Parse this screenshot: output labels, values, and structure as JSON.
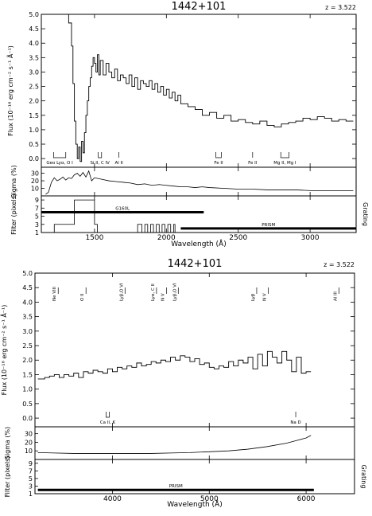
{
  "chart_data": [
    {
      "type": "line",
      "title": "1442+101",
      "redshift_label": "z = 3.522",
      "xlabel": "Wavelength (Å)",
      "xlim": [
        1130,
        3320
      ],
      "xticks": [
        1500,
        2000,
        2500,
        3000
      ],
      "flux": {
        "ylabel": "Flux (10⁻¹⁶ erg cm⁻² s⁻¹ Å⁻¹)",
        "ylim": [
          -0.3,
          5.0
        ],
        "yticks": [
          "0.0",
          "0.5",
          "1.0",
          "1.5",
          "2.0",
          "2.5",
          "3.0",
          "3.5",
          "4.0",
          "4.5",
          "5.0"
        ],
        "spectrum": {
          "x": [
            1160,
            1200,
            1250,
            1300,
            1320,
            1340,
            1350,
            1360,
            1370,
            1380,
            1390,
            1400,
            1410,
            1420,
            1430,
            1440,
            1450,
            1460,
            1470,
            1480,
            1490,
            1500,
            1510,
            1520,
            1530,
            1540,
            1560,
            1580,
            1600,
            1620,
            1640,
            1660,
            1680,
            1700,
            1720,
            1740,
            1760,
            1780,
            1800,
            1820,
            1840,
            1860,
            1880,
            1900,
            1920,
            1940,
            1960,
            1980,
            2000,
            2020,
            2040,
            2060,
            2080,
            2100,
            2150,
            2200,
            2250,
            2300,
            2350,
            2400,
            2450,
            2500,
            2550,
            2600,
            2650,
            2700,
            2750,
            2800,
            2850,
            2900,
            2950,
            3000,
            3050,
            3100,
            3150,
            3200,
            3250,
            3300
          ],
          "y": [
            5.0,
            5.0,
            5.0,
            5.0,
            4.7,
            3.9,
            2.6,
            1.3,
            0.5,
            0.0,
            0.4,
            -0.1,
            0.6,
            0.2,
            0.9,
            1.5,
            2.0,
            2.5,
            2.8,
            3.2,
            3.5,
            3.3,
            3.0,
            3.6,
            2.9,
            3.4,
            2.9,
            3.3,
            3.0,
            2.8,
            3.1,
            2.7,
            2.9,
            2.8,
            2.6,
            2.9,
            2.5,
            2.8,
            2.4,
            2.7,
            2.6,
            2.5,
            2.7,
            2.4,
            2.6,
            2.3,
            2.5,
            2.2,
            2.4,
            2.1,
            2.3,
            2.0,
            2.2,
            1.9,
            1.8,
            1.7,
            1.5,
            1.6,
            1.4,
            1.5,
            1.3,
            1.35,
            1.25,
            1.2,
            1.3,
            1.15,
            1.1,
            1.2,
            1.25,
            1.3,
            1.4,
            1.35,
            1.45,
            1.4,
            1.3,
            1.35,
            1.3,
            1.3
          ]
        },
        "lines": [
          {
            "label": "Geo Lyα, O I",
            "x1": 1215,
            "x2": 1300
          },
          {
            "label": "Si II, C IV",
            "x1": 1526,
            "x2": 1549
          },
          {
            "label": "Al II",
            "x1": 1670,
            "x2": 1670
          },
          {
            "label": "Fe II",
            "x1": 2344,
            "x2": 2382
          },
          {
            "label": "Fe II",
            "x1": 2600,
            "x2": 2600
          },
          {
            "label": "Mg II, Mg I",
            "x1": 2796,
            "x2": 2853
          }
        ]
      },
      "sigma": {
        "ylabel": "Sigma (%)",
        "ylim": [
          0,
          38
        ],
        "yticks": [
          "10",
          "20",
          "30"
        ],
        "x": [
          1160,
          1180,
          1200,
          1220,
          1240,
          1260,
          1280,
          1300,
          1320,
          1340,
          1360,
          1380,
          1400,
          1420,
          1440,
          1460,
          1480,
          1500,
          1550,
          1600,
          1650,
          1700,
          1750,
          1800,
          1850,
          1900,
          1950,
          2000,
          2050,
          2100,
          2150,
          2200,
          2250,
          2300,
          2400,
          2500,
          2600,
          2700,
          2800,
          2900,
          3000,
          3100,
          3200,
          3300
        ],
        "y": [
          2,
          5,
          18,
          24,
          20,
          22,
          25,
          21,
          24,
          23,
          28,
          30,
          26,
          31,
          25,
          33,
          20,
          24,
          22,
          20,
          19,
          18,
          17,
          15,
          16,
          14,
          15,
          14,
          13,
          12,
          12,
          11,
          12,
          11,
          10,
          9,
          9,
          8,
          8,
          8,
          7,
          7,
          7,
          7
        ]
      },
      "filter": {
        "ylabel": "Filter (pixels)",
        "right_label": "Grating",
        "ylim": [
          1,
          10
        ],
        "yticks": [
          "1",
          "3",
          "5",
          "7",
          "9"
        ],
        "filter_x": [
          1130,
          1220,
          1220,
          1360,
          1360,
          1500,
          1500,
          1520,
          1520,
          1800,
          1800,
          1830,
          1830,
          1850,
          1850,
          1870,
          1870,
          1890,
          1890,
          1910,
          1910,
          1930,
          1930,
          1950,
          1950,
          1970,
          1970,
          1990,
          1990,
          2010,
          2010,
          2030,
          2030,
          2050,
          2050,
          2060,
          2060,
          2260,
          2260,
          3320
        ],
        "filter_y": [
          1,
          1,
          3,
          3,
          9,
          9,
          3,
          3,
          1,
          1,
          3,
          3,
          1,
          1,
          3,
          3,
          1,
          1,
          3,
          3,
          1,
          1,
          3,
          3,
          1,
          1,
          3,
          3,
          1,
          1,
          3,
          3,
          1,
          1,
          3,
          3,
          1,
          1,
          1,
          1
        ],
        "gratings": [
          {
            "label": "G160L",
            "x1": 1130,
            "x2": 2260,
            "y": 6
          },
          {
            "label": "PRISM",
            "x1": 2100,
            "x2": 3320,
            "y": 2
          }
        ]
      }
    },
    {
      "type": "line",
      "title": "1442+101",
      "redshift_label": "z = 3.522",
      "xlabel": "Wavelength (Å)",
      "xlim": [
        3200,
        6500
      ],
      "xticks": [
        4000,
        5000,
        6000
      ],
      "flux": {
        "ylabel": "Flux (10⁻¹⁶ erg cm⁻² s⁻¹ Å⁻¹)",
        "ylim": [
          -0.3,
          5.0
        ],
        "yticks": [
          "0.0",
          "0.5",
          "1.0",
          "1.5",
          "2.0",
          "2.5",
          "3.0",
          "3.5",
          "4.0",
          "4.5",
          "5.0"
        ],
        "spectrum": {
          "x": [
            3230,
            3300,
            3350,
            3400,
            3450,
            3500,
            3550,
            3600,
            3650,
            3700,
            3750,
            3800,
            3850,
            3900,
            3950,
            4000,
            4050,
            4100,
            4150,
            4200,
            4250,
            4300,
            4350,
            4400,
            4450,
            4500,
            4550,
            4600,
            4650,
            4700,
            4750,
            4800,
            4850,
            4900,
            4950,
            5000,
            5050,
            5100,
            5150,
            5200,
            5250,
            5300,
            5350,
            5400,
            5450,
            5500,
            5550,
            5600,
            5650,
            5700,
            5750,
            5800,
            5850,
            5900,
            5950,
            6000,
            6050
          ],
          "y": [
            1.35,
            1.4,
            1.45,
            1.5,
            1.4,
            1.5,
            1.45,
            1.55,
            1.4,
            1.6,
            1.55,
            1.65,
            1.6,
            1.55,
            1.7,
            1.6,
            1.75,
            1.7,
            1.8,
            1.75,
            1.9,
            1.8,
            1.85,
            1.95,
            1.9,
            2.0,
            1.95,
            2.1,
            2.0,
            2.15,
            2.1,
            1.95,
            2.05,
            1.85,
            1.9,
            1.75,
            1.7,
            1.8,
            1.75,
            1.95,
            1.8,
            2.0,
            1.9,
            2.1,
            1.7,
            2.2,
            1.8,
            2.3,
            2.1,
            1.9,
            2.3,
            2.0,
            1.6,
            2.1,
            1.55,
            1.6,
            1.6
          ]
        },
        "lines_top": [
          {
            "label": "Ne VIII",
            "x": 3440
          },
          {
            "label": "O II",
            "x": 3727
          },
          {
            "label": "Lyβ,O VI",
            "x": 4130
          },
          {
            "label": "Lyα, C II",
            "x": 4455
          },
          {
            "label": "N V",
            "x": 4560
          },
          {
            "label": "Lyβ,O VI",
            "x": 4680
          },
          {
            "label": "Lyβ",
            "x": 5490
          },
          {
            "label": "N V",
            "x": 5610
          },
          {
            "label": "Al III",
            "x": 6340
          }
        ],
        "lines_bottom": [
          {
            "label": "Ca II, K",
            "x1": 3934,
            "x2": 3968
          },
          {
            "label": "Na D",
            "x1": 5893,
            "x2": 5893
          }
        ]
      },
      "sigma": {
        "ylabel": "Sigma (%)",
        "ylim": [
          0,
          38
        ],
        "yticks": [
          "10",
          "20",
          "30"
        ],
        "x": [
          3230,
          3400,
          3600,
          3800,
          4000,
          4200,
          4400,
          4600,
          4800,
          5000,
          5200,
          5400,
          5600,
          5800,
          5900,
          6000,
          6050
        ],
        "y": [
          8,
          7.5,
          7,
          7,
          7,
          7,
          7,
          7.5,
          8,
          9,
          10,
          12,
          15,
          19,
          22,
          25,
          28
        ]
      },
      "filter": {
        "ylabel": "Filter (pixels)",
        "right_label": "Grating",
        "ylim": [
          1,
          10
        ],
        "yticks": [
          "1",
          "3",
          "5",
          "7",
          "9"
        ],
        "gratings": [
          {
            "label": "PRISM",
            "x1": 3230,
            "x2": 6080,
            "y": 2
          }
        ]
      }
    }
  ]
}
